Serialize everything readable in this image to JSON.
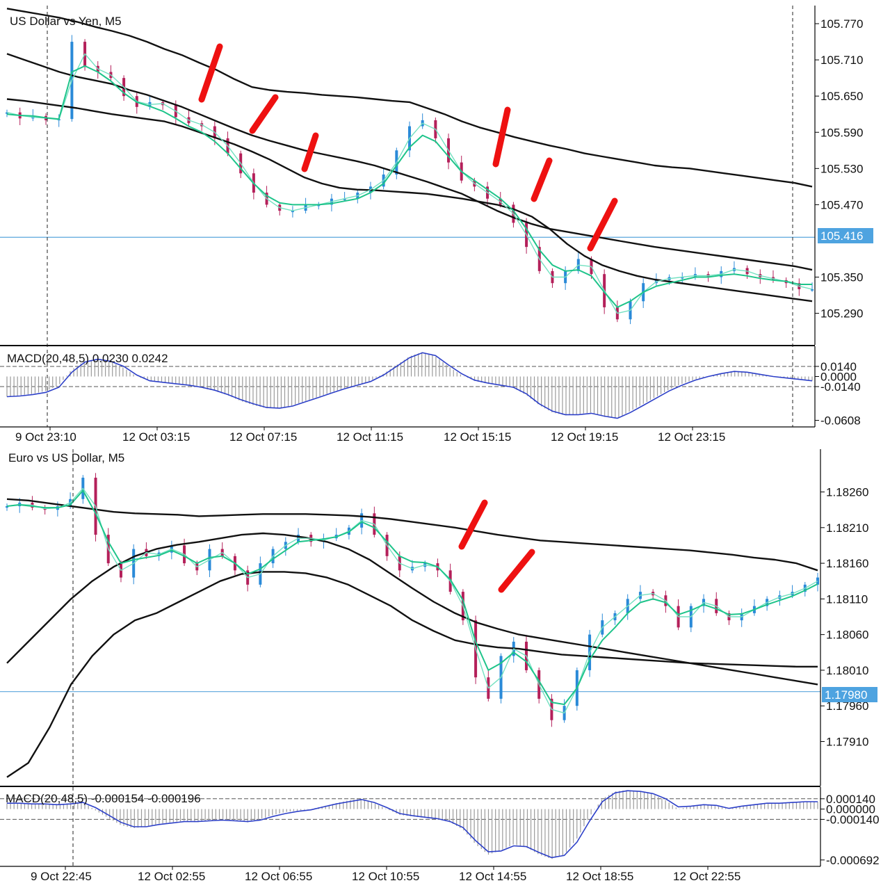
{
  "colors": {
    "background": "#ffffff",
    "axis": "#000000",
    "ma_slow": "#111111",
    "ma_fast": "#1ec48a",
    "ma_fast2": "#72e0c0",
    "candle_up": "#2a8ad8",
    "candle_down": "#b4205a",
    "bid_line": "#5aa6dc",
    "bid_badge": "#4ea3e0",
    "macd_hist": "#9a9a9a",
    "macd_signal": "#2c3fc8",
    "annotation": "#ee1111"
  },
  "chart_data": [
    {
      "type": "line",
      "title": "US Dollar vs Yen, M5",
      "ylim": [
        105.24,
        105.8
      ],
      "y_ticks": [
        "105.770",
        "105.710",
        "105.650",
        "105.590",
        "105.530",
        "105.470",
        "105.350",
        "105.290"
      ],
      "current_price": "105.416",
      "current_price_value": 105.416,
      "series": [
        {
          "key": "price",
          "values": [
            105.623,
            105.613,
            105.617,
            105.61,
            105.612,
            105.74,
            105.7,
            105.69,
            105.68,
            105.65,
            105.632,
            105.64,
            105.635,
            105.615,
            105.605,
            105.6,
            105.58,
            105.555,
            105.522,
            105.49,
            105.47,
            105.46,
            105.46,
            105.47,
            105.47,
            105.48,
            105.48,
            105.49,
            105.5,
            105.52,
            105.56,
            105.6,
            105.61,
            105.58,
            105.54,
            105.51,
            105.5,
            105.48,
            105.47,
            105.44,
            105.4,
            105.36,
            105.34,
            105.36,
            105.38,
            105.355,
            105.3,
            105.28,
            105.31,
            105.34,
            105.345,
            105.35,
            105.35,
            105.355,
            105.35,
            105.36,
            105.365,
            105.355,
            105.35,
            105.345,
            105.34,
            105.33,
            105.33
          ]
        },
        {
          "key": "ma_fast",
          "values": [
            105.62,
            105.618,
            105.617,
            105.614,
            105.612,
            105.69,
            105.7,
            105.69,
            105.675,
            105.655,
            105.64,
            105.633,
            105.625,
            105.613,
            105.6,
            105.59,
            105.575,
            105.555,
            105.53,
            105.505,
            105.485,
            105.473,
            105.47,
            105.47,
            105.47,
            105.472,
            105.476,
            105.48,
            105.49,
            105.505,
            105.535,
            105.565,
            105.585,
            105.575,
            105.55,
            105.525,
            105.51,
            105.495,
            105.48,
            105.46,
            105.43,
            105.395,
            105.37,
            105.36,
            105.362,
            105.352,
            105.325,
            105.3,
            105.31,
            105.325,
            105.335,
            105.34,
            105.345,
            105.35,
            105.35,
            105.353,
            105.355,
            105.352,
            105.348,
            105.345,
            105.343,
            105.338,
            105.338
          ]
        },
        {
          "key": "ma_slow_top",
          "values": [
            105.795,
            105.79,
            105.785,
            105.78,
            105.773,
            105.765,
            105.758,
            105.75,
            105.74,
            105.728,
            105.718,
            105.705,
            105.693,
            105.678,
            105.665,
            105.66,
            105.657,
            105.655,
            105.652,
            105.65,
            105.648,
            105.645,
            105.642,
            105.64,
            105.63,
            105.62,
            105.608,
            105.598,
            105.59,
            105.582,
            105.575,
            105.568,
            105.562,
            105.555,
            105.55,
            105.545,
            105.54,
            105.535,
            105.532,
            105.53,
            105.526,
            105.522,
            105.518,
            105.514,
            105.51,
            105.506,
            105.5
          ]
        },
        {
          "key": "ma_slow_mid",
          "values": [
            105.72,
            105.71,
            105.7,
            105.69,
            105.682,
            105.676,
            105.67,
            105.66,
            105.652,
            105.642,
            105.632,
            105.62,
            105.608,
            105.596,
            105.585,
            105.576,
            105.568,
            105.56,
            105.554,
            105.548,
            105.542,
            105.535,
            105.526,
            105.517,
            105.508,
            105.498,
            105.488,
            105.474,
            105.46,
            105.448,
            105.438,
            105.43,
            105.425,
            105.42,
            105.415,
            105.41,
            105.405,
            105.4,
            105.396,
            105.392,
            105.388,
            105.384,
            105.38,
            105.376,
            105.372,
            105.368,
            105.362
          ]
        },
        {
          "key": "ma_slow_low",
          "values": [
            105.645,
            105.642,
            105.638,
            105.634,
            105.63,
            105.625,
            105.62,
            105.616,
            105.612,
            105.608,
            105.6,
            105.59,
            105.58,
            105.57,
            105.558,
            105.545,
            105.53,
            105.515,
            105.505,
            105.498,
            105.495,
            105.494,
            105.492,
            105.49,
            105.488,
            105.484,
            105.48,
            105.475,
            105.47,
            105.462,
            105.45,
            105.43,
            105.405,
            105.385,
            105.37,
            105.36,
            105.352,
            105.346,
            105.342,
            105.338,
            105.334,
            105.33,
            105.326,
            105.322,
            105.318,
            105.314,
            105.31
          ]
        }
      ]
    },
    {
      "type": "bar",
      "title": "MACD(20,48,5) 0.0230 0.0242",
      "ylim": [
        -0.068,
        0.04
      ],
      "y_ticks": [
        "0.0140",
        "0.0000",
        "-0.0140",
        "-0.0608"
      ],
      "levels": [
        0.014,
        -0.014
      ],
      "series": [
        {
          "key": "histogram",
          "values": [
            -0.028,
            -0.026,
            -0.024,
            -0.02,
            -0.012,
            0.01,
            0.022,
            0.024,
            0.02,
            0.012,
            0.0,
            -0.006,
            -0.008,
            -0.01,
            -0.012,
            -0.016,
            -0.02,
            -0.026,
            -0.034,
            -0.04,
            -0.044,
            -0.044,
            -0.04,
            -0.034,
            -0.028,
            -0.022,
            -0.016,
            -0.012,
            -0.006,
            0.004,
            0.016,
            0.028,
            0.034,
            0.028,
            0.014,
            0.002,
            -0.006,
            -0.01,
            -0.012,
            -0.016,
            -0.026,
            -0.04,
            -0.05,
            -0.054,
            -0.052,
            -0.05,
            -0.056,
            -0.058,
            -0.048,
            -0.038,
            -0.028,
            -0.018,
            -0.01,
            -0.004,
            0.0,
            0.004,
            0.008,
            0.006,
            0.002,
            0.0,
            -0.002,
            -0.004,
            -0.006
          ]
        },
        {
          "key": "signal",
          "values": [
            -0.028,
            -0.027,
            -0.025,
            -0.022,
            -0.015,
            0.006,
            0.02,
            0.024,
            0.021,
            0.014,
            0.002,
            -0.006,
            -0.008,
            -0.01,
            -0.012,
            -0.015,
            -0.019,
            -0.025,
            -0.032,
            -0.038,
            -0.043,
            -0.044,
            -0.041,
            -0.035,
            -0.029,
            -0.023,
            -0.017,
            -0.012,
            -0.007,
            0.002,
            0.014,
            0.026,
            0.033,
            0.029,
            0.016,
            0.004,
            -0.005,
            -0.009,
            -0.012,
            -0.015,
            -0.024,
            -0.038,
            -0.048,
            -0.053,
            -0.053,
            -0.051,
            -0.055,
            -0.058,
            -0.05,
            -0.04,
            -0.03,
            -0.02,
            -0.012,
            -0.005,
            0.0,
            0.004,
            0.007,
            0.006,
            0.003,
            0.0,
            -0.002,
            -0.004,
            -0.006
          ]
        }
      ],
      "x_tick_labels": [
        "9 Oct 23:10",
        "12 Oct 03:15",
        "12 Oct 07:15",
        "12 Oct 11:15",
        "12 Oct 15:15",
        "12 Oct 19:15",
        "12 Oct 23:15"
      ]
    },
    {
      "type": "line",
      "title": "Euro vs US Dollar, M5",
      "ylim": [
        1.1785,
        1.1832
      ],
      "y_ticks": [
        "1.18260",
        "1.18210",
        "1.18160",
        "1.18110",
        "1.18060",
        "1.18010",
        "1.17960",
        "1.17910"
      ],
      "current_price": "1.17980",
      "current_price_value": 1.1798,
      "series": [
        {
          "key": "price",
          "values": [
            1.1824,
            1.18245,
            1.18238,
            1.18235,
            1.1824,
            1.1825,
            1.1828,
            1.182,
            1.1816,
            1.1814,
            1.1818,
            1.1817,
            1.18175,
            1.18185,
            1.1816,
            1.1815,
            1.1818,
            1.1817,
            1.1815,
            1.1813,
            1.1816,
            1.1818,
            1.1819,
            1.182,
            1.1819,
            1.18195,
            1.182,
            1.1821,
            1.1823,
            1.182,
            1.1817,
            1.1815,
            1.18155,
            1.1816,
            1.1815,
            1.1812,
            1.1808,
            1.18,
            1.1797,
            1.1803,
            1.1805,
            1.1801,
            1.1797,
            1.1794,
            1.1796,
            1.1801,
            1.1806,
            1.1808,
            1.1809,
            1.1811,
            1.1812,
            1.18115,
            1.181,
            1.1807,
            1.181,
            1.1811,
            1.1809,
            1.1808,
            1.1809,
            1.181,
            1.1811,
            1.18115,
            1.1812,
            1.1813,
            1.1814
          ]
        },
        {
          "key": "ma_fast",
          "values": [
            1.1824,
            1.18242,
            1.1824,
            1.18238,
            1.18238,
            1.18242,
            1.18262,
            1.1823,
            1.1819,
            1.1816,
            1.18165,
            1.18168,
            1.18171,
            1.18178,
            1.1817,
            1.1816,
            1.18168,
            1.1817,
            1.1816,
            1.18145,
            1.18152,
            1.18166,
            1.18178,
            1.1819,
            1.18192,
            1.18194,
            1.18197,
            1.18204,
            1.18218,
            1.1821,
            1.1819,
            1.1817,
            1.18162,
            1.18161,
            1.18155,
            1.18137,
            1.18108,
            1.1805,
            1.1801,
            1.1802,
            1.18035,
            1.18022,
            1.17995,
            1.17965,
            1.17962,
            1.17985,
            1.18025,
            1.18052,
            1.1807,
            1.1809,
            1.18105,
            1.1811,
            1.18105,
            1.18088,
            1.18094,
            1.18102,
            1.18096,
            1.18088,
            1.18089,
            1.18095,
            1.18102,
            1.18108,
            1.18114,
            1.18122,
            1.18131
          ]
        },
        {
          "key": "ma_slow_top",
          "values": [
            1.1825,
            1.18248,
            1.18244,
            1.1824,
            1.18236,
            1.18232,
            1.1823,
            1.18229,
            1.18228,
            1.18226,
            1.18227,
            1.18228,
            1.18229,
            1.18229,
            1.18229,
            1.18228,
            1.18227,
            1.18225,
            1.18222,
            1.18218,
            1.18214,
            1.1821,
            1.18205,
            1.182,
            1.18196,
            1.18192,
            1.1819,
            1.18188,
            1.18186,
            1.18184,
            1.18182,
            1.1818,
            1.18178,
            1.18175,
            1.18172,
            1.18168,
            1.18165,
            1.1816,
            1.1815
          ]
        },
        {
          "key": "ma_slow_mid",
          "values": [
            1.1802,
            1.1805,
            1.1808,
            1.1811,
            1.18135,
            1.18155,
            1.1817,
            1.1818,
            1.18186,
            1.1819,
            1.18195,
            1.182,
            1.18202,
            1.182,
            1.18196,
            1.1819,
            1.1818,
            1.18165,
            1.18145,
            1.18125,
            1.18106,
            1.1809,
            1.18077,
            1.18068,
            1.1806,
            1.18055,
            1.1805,
            1.18045,
            1.1804,
            1.18035,
            1.1803,
            1.18025,
            1.1802,
            1.18015,
            1.1801,
            1.18005,
            1.18,
            1.17995,
            1.1799
          ]
        },
        {
          "key": "ma_slow_low",
          "values": [
            1.1786,
            1.1788,
            1.1793,
            1.1799,
            1.1803,
            1.1806,
            1.1808,
            1.1809,
            1.18105,
            1.1812,
            1.18135,
            1.18145,
            1.18148,
            1.18148,
            1.18146,
            1.1814,
            1.1813,
            1.18115,
            1.181,
            1.1808,
            1.18065,
            1.18052,
            1.18046,
            1.18042,
            1.1804,
            1.18036,
            1.18032,
            1.1803,
            1.18028,
            1.18026,
            1.18024,
            1.18022,
            1.1802,
            1.18019,
            1.18018,
            1.18017,
            1.18016,
            1.18015,
            1.18015
          ]
        }
      ]
    },
    {
      "type": "bar",
      "title": "MACD(20,48,5) -0.000154 -0.000196",
      "ylim": [
        -0.00076,
        0.00028
      ],
      "y_ticks": [
        "0.000140",
        "0.000000",
        "-0.000140",
        "-0.000692"
      ],
      "levels": [
        0.00014,
        -0.00014
      ],
      "series": [
        {
          "key": "histogram",
          "values": [
            8e-05,
            8e-05,
            7e-05,
            6e-05,
            6e-05,
            8e-05,
            0.0001,
            -2e-05,
            -0.00012,
            -0.00022,
            -0.00026,
            -0.00024,
            -0.0002,
            -0.00018,
            -0.00016,
            -0.00018,
            -0.00016,
            -0.00014,
            -0.00016,
            -0.00018,
            -0.00014,
            -8e-05,
            -4e-05,
            -2e-05,
            0.0,
            4e-05,
            8e-05,
            0.00012,
            0.00014,
            8e-05,
            0.0,
            -8e-05,
            -0.0001,
            -0.00012,
            -0.00014,
            -0.00018,
            -0.00028,
            -0.00048,
            -0.00062,
            -0.00056,
            -0.00048,
            -0.00052,
            -0.00062,
            -0.00068,
            -0.00062,
            -0.0004,
            -0.0001,
            0.00014,
            0.00024,
            0.00026,
            0.00024,
            0.0002,
            0.00012,
            0.0,
            4e-05,
            6e-05,
            4e-05,
            0.0,
            4e-05,
            6e-05,
            8e-05,
            8e-05,
            9e-05,
            0.0001,
            0.0001
          ]
        },
        {
          "key": "signal",
          "values": [
            8e-05,
            8e-05,
            7e-05,
            7e-05,
            6e-05,
            7e-05,
            9e-05,
            2e-05,
            -8e-05,
            -0.00018,
            -0.00024,
            -0.00024,
            -0.00021,
            -0.00019,
            -0.00017,
            -0.00017,
            -0.00016,
            -0.00015,
            -0.00016,
            -0.00017,
            -0.00015,
            -0.0001,
            -6e-05,
            -3e-05,
            -1e-05,
            3e-05,
            7e-05,
            0.0001,
            0.00013,
            9e-05,
            2e-05,
            -6e-05,
            -9e-05,
            -0.00011,
            -0.00013,
            -0.00017,
            -0.00025,
            -0.00043,
            -0.00058,
            -0.00057,
            -0.0005,
            -0.00051,
            -0.00059,
            -0.00066,
            -0.00063,
            -0.00045,
            -0.00016,
            0.0001,
            0.00022,
            0.00025,
            0.00024,
            0.00021,
            0.00014,
            3e-05,
            4e-05,
            6e-05,
            5e-05,
            1e-05,
            4e-05,
            6e-05,
            8e-05,
            8e-05,
            9e-05,
            0.0001,
            0.0001
          ]
        }
      ],
      "x_tick_labels": [
        "9 Oct 22:45",
        "12 Oct 02:55",
        "12 Oct 06:55",
        "12 Oct 10:55",
        "12 Oct 14:55",
        "12 Oct 18:55",
        "12 Oct 22:55"
      ]
    }
  ]
}
